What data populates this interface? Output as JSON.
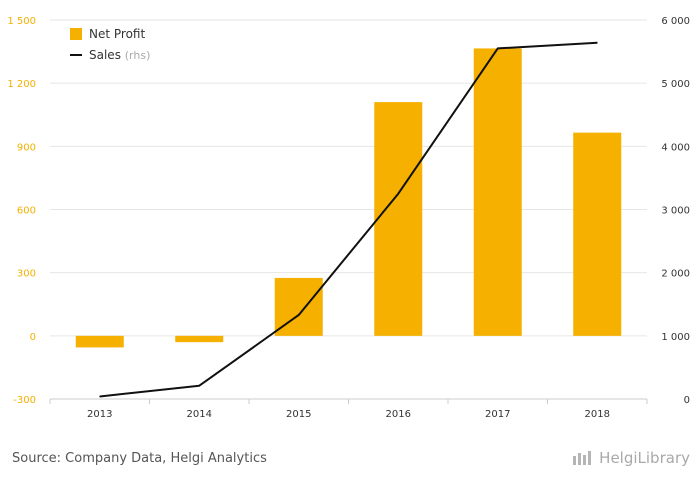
{
  "chart_data": {
    "type": "bar",
    "categories": [
      "2013",
      "2014",
      "2015",
      "2016",
      "2017",
      "2018"
    ],
    "series": [
      {
        "name": "Net Profit",
        "type": "bar",
        "axis": "left",
        "color": "#f5b000",
        "values": [
          -55,
          -30,
          275,
          1110,
          1365,
          965
        ]
      },
      {
        "name": "Sales",
        "name_suffix": "(rhs)",
        "type": "line",
        "axis": "right",
        "color": "#111111",
        "values": [
          40,
          210,
          1330,
          3250,
          5550,
          5640
        ]
      }
    ],
    "y_left": {
      "min": -300,
      "max": 1500,
      "ticks": [
        -300,
        0,
        300,
        600,
        900,
        1200,
        1500
      ],
      "tick_labels": [
        "-300",
        "0",
        "300",
        "600",
        "900",
        "1 200",
        "1 500"
      ],
      "color": "#f5b000"
    },
    "y_right": {
      "min": 0,
      "max": 6000,
      "ticks": [
        0,
        1000,
        2000,
        3000,
        4000,
        5000,
        6000
      ],
      "tick_labels": [
        "0",
        "1 000",
        "2 000",
        "3 000",
        "4 000",
        "5 000",
        "6 000"
      ],
      "color": "#333333"
    },
    "grid": true,
    "legend": "top-left"
  },
  "footer": {
    "source": "Source: Company Data, Helgi Analytics",
    "brand": "HelgiLibrary"
  }
}
